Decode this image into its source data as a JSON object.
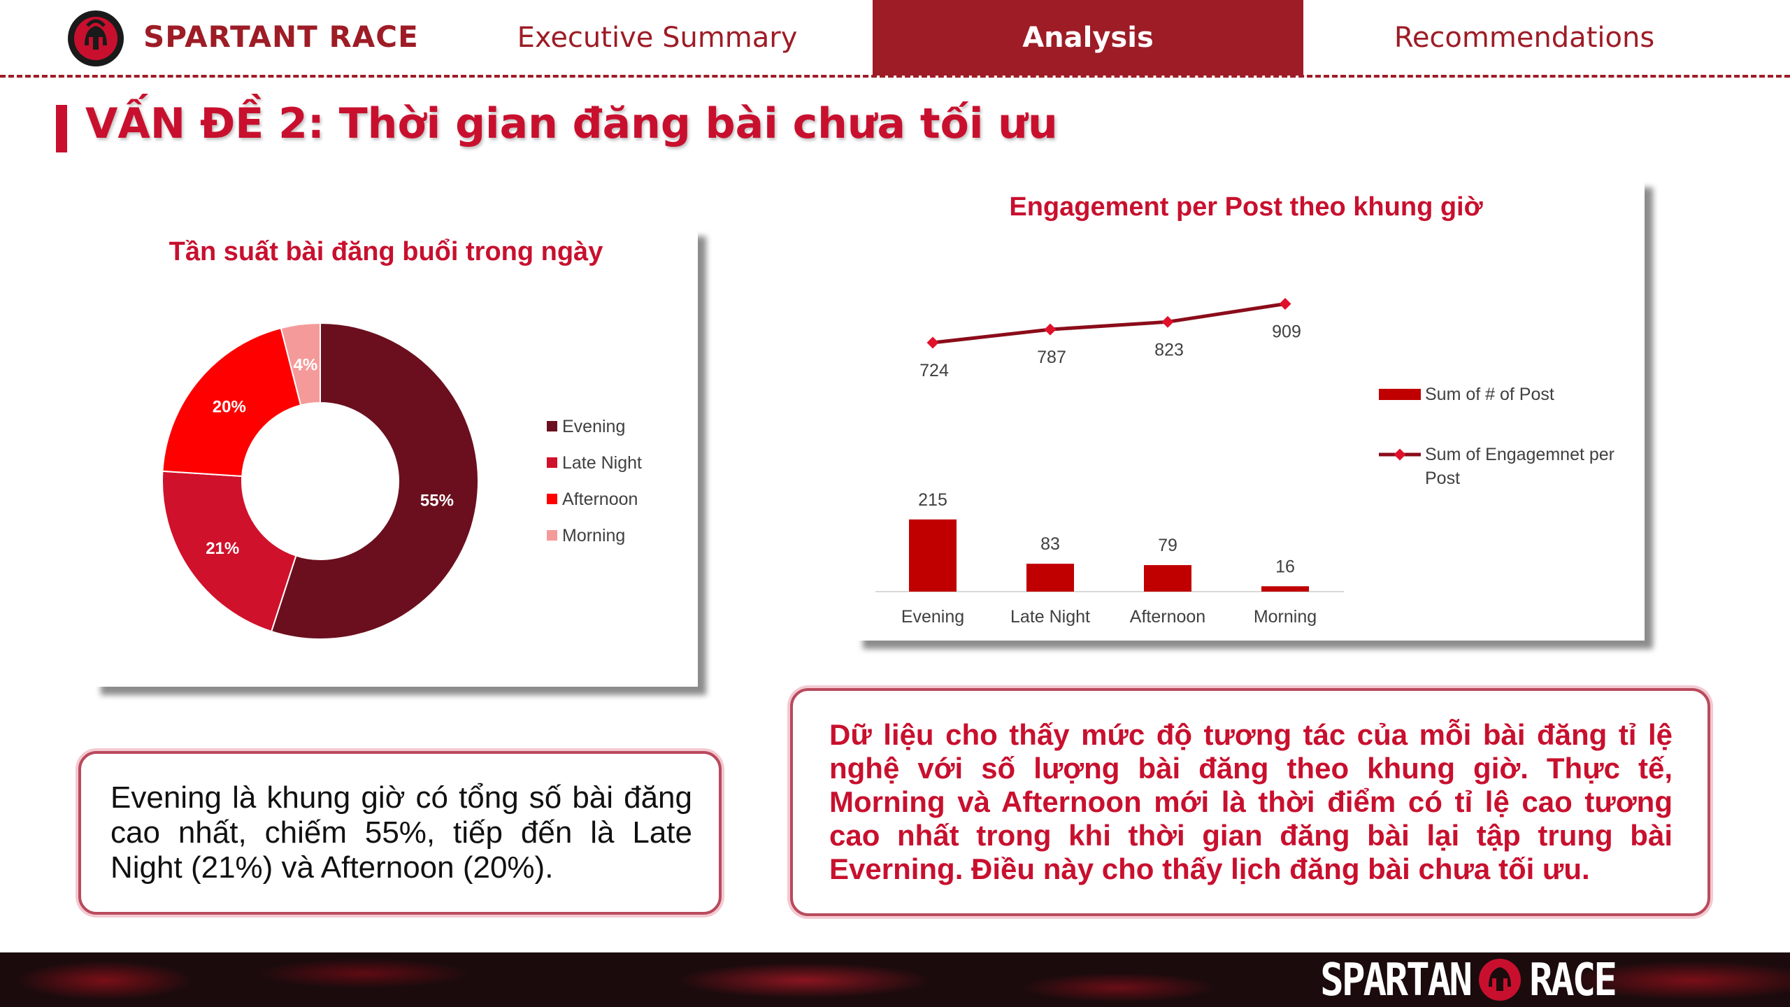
{
  "header": {
    "brand": "SPARTANT RACE",
    "tabs": [
      {
        "label": "Executive Summary",
        "active": false
      },
      {
        "label": "Analysis",
        "active": true
      },
      {
        "label": "Recommendations",
        "active": false
      }
    ],
    "accent_color": "#9d1c26"
  },
  "page": {
    "title": "VẤN ĐỀ 2: Thời gian đăng bài chưa tối ưu"
  },
  "chart_data": [
    {
      "type": "pie",
      "title": "Tần suất bài đăng buổi trong ngày",
      "donut": true,
      "legend_position": "right",
      "slices": [
        {
          "label": "Evening",
          "value": 55,
          "display": "55%",
          "color": "#6b0f1e"
        },
        {
          "label": "Late Night",
          "value": 21,
          "display": "21%",
          "color": "#d0112b"
        },
        {
          "label": "Afternoon",
          "value": 20,
          "display": "20%",
          "color": "#ff0000"
        },
        {
          "label": "Morning",
          "value": 4,
          "display": "4%",
          "color": "#f59a9a"
        }
      ]
    },
    {
      "type": "bar",
      "title": "Engagement per Post theo khung giờ",
      "categories": [
        "Evening",
        "Late Night",
        "Afternoon",
        "Morning"
      ],
      "legend_position": "right",
      "series": [
        {
          "name": "Sum of # of Post",
          "kind": "bar",
          "values": [
            215,
            83,
            79,
            16
          ],
          "color": "#c00000"
        },
        {
          "name": "Sum of Engagemnet per Post",
          "kind": "line",
          "values": [
            724,
            787,
            823,
            909
          ],
          "color": "#8b0c1a"
        }
      ]
    }
  ],
  "text_boxes": {
    "left": "Evening là khung giờ có tổng số bài đăng cao nhất, chiếm 55%, tiếp đến là Late Night (21%) và Afternoon (20%).",
    "right": "Dữ liệu cho thấy mức độ tương tác của mỗi bài đăng tỉ lệ nghệ với số lượng bài đăng theo khung giờ. Thực tế, Morning và Afternoon mới là thời điểm có tỉ lệ cao tương cao nhất trong khi thời gian đăng bài lại tập trung bài Everning. Điều này cho thấy lịch đăng bài chưa tối ưu."
  },
  "footer": {
    "logo_left": "SPARTAN",
    "logo_right": "RACE"
  }
}
